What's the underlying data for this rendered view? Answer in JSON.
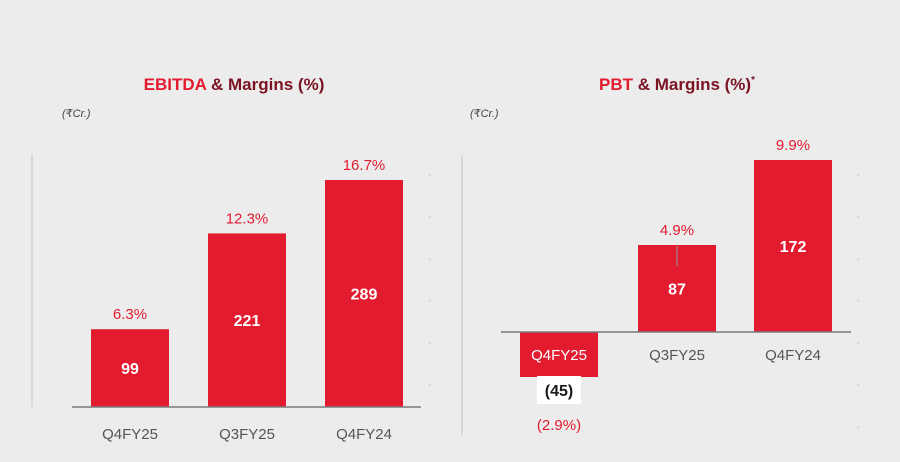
{
  "colors": {
    "background": "#ececec",
    "bar": "#e31b2f",
    "title_accent": "#e31b2f",
    "title_main": "#7a1322",
    "label_on_bar": "#ffffff",
    "margin_label": "#e31b2f",
    "category_label": "#555555",
    "axis": "#7a7a7a",
    "unit": "#444444"
  },
  "chart_data": [
    {
      "type": "bar",
      "title_accent": "EBITDA",
      "title_rest": " & Margins (%)",
      "title_suffix": "",
      "unit": "(₹Cr.)",
      "categories": [
        "Q4FY25",
        "Q3FY25",
        "Q4FY24"
      ],
      "values": [
        99,
        221,
        289
      ],
      "value_labels": [
        "99",
        "221",
        "289"
      ],
      "margin_labels": [
        "6.3%",
        "12.3%",
        "16.7%"
      ],
      "ylim": [
        0,
        289
      ],
      "grid": false
    },
    {
      "type": "bar",
      "title_accent": "PBT",
      "title_rest": " & Margins (%)",
      "title_suffix": "*",
      "unit": "(₹Cr.)",
      "categories": [
        "Q4FY25",
        "Q3FY25",
        "Q4FY24"
      ],
      "values": [
        -45,
        87,
        172
      ],
      "value_labels": [
        "(45)",
        "87",
        "172"
      ],
      "margin_labels": [
        "(2.9%)",
        "4.9%",
        "9.9%"
      ],
      "ylim": [
        -45,
        172
      ],
      "grid": false
    }
  ]
}
